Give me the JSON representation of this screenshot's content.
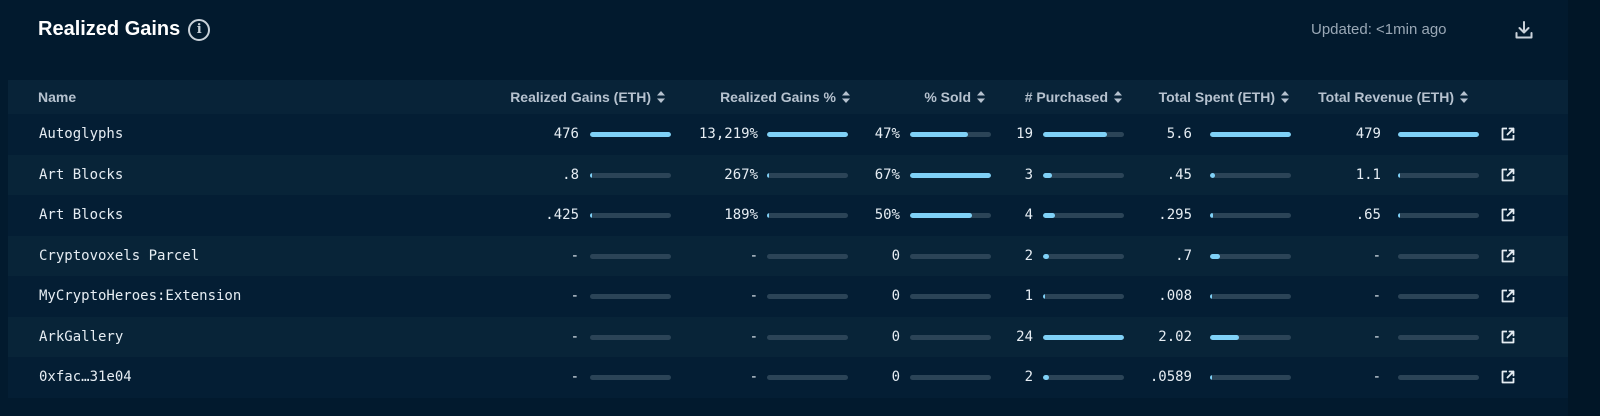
{
  "header": {
    "title": "Realized Gains",
    "updated": "Updated: <1min ago"
  },
  "columns": [
    {
      "label": "Name",
      "sortable": false
    },
    {
      "label": "Realized Gains (ETH)",
      "sortable": true
    },
    {
      "label": "Realized Gains %",
      "sortable": true
    },
    {
      "label": "% Sold",
      "sortable": true
    },
    {
      "label": "# Purchased",
      "sortable": true
    },
    {
      "label": "Total Spent (ETH)",
      "sortable": true
    },
    {
      "label": "Total Revenue (ETH)",
      "sortable": true
    }
  ],
  "rows": [
    {
      "name": "Autoglyphs",
      "gains": "476",
      "gains_bar": 1.0,
      "gains_pct": "13,219%",
      "gains_pct_bar": 1.0,
      "sold": "47%",
      "sold_bar": 0.72,
      "purchased": "19",
      "purchased_bar": 0.79,
      "spent": "5.6",
      "spent_bar": 1.0,
      "revenue": "479",
      "revenue_bar": 1.0
    },
    {
      "name": "Art Blocks",
      "gains": ".8",
      "gains_bar": 0.01,
      "gains_pct": "267%",
      "gains_pct_bar": 0.02,
      "sold": "67%",
      "sold_bar": 1.0,
      "purchased": "3",
      "purchased_bar": 0.11,
      "spent": ".45",
      "spent_bar": 0.06,
      "revenue": "1.1",
      "revenue_bar": 0.01
    },
    {
      "name": "Art Blocks",
      "gains": ".425",
      "gains_bar": 0.01,
      "gains_pct": "189%",
      "gains_pct_bar": 0.01,
      "sold": "50%",
      "sold_bar": 0.76,
      "purchased": "4",
      "purchased_bar": 0.15,
      "spent": ".295",
      "spent_bar": 0.04,
      "revenue": ".65",
      "revenue_bar": 0.01
    },
    {
      "name": "Cryptovoxels Parcel",
      "gains": "-",
      "gains_bar": 0,
      "gains_pct": "-",
      "gains_pct_bar": 0,
      "sold": "0",
      "sold_bar": 0,
      "purchased": "2",
      "purchased_bar": 0.07,
      "spent": ".7",
      "spent_bar": 0.12,
      "revenue": "-",
      "revenue_bar": 0
    },
    {
      "name": "MyCryptoHeroes:Extension",
      "gains": "-",
      "gains_bar": 0,
      "gains_pct": "-",
      "gains_pct_bar": 0,
      "sold": "0",
      "sold_bar": 0,
      "purchased": "1",
      "purchased_bar": 0.03,
      "spent": ".008",
      "spent_bar": 0.01,
      "revenue": "-",
      "revenue_bar": 0
    },
    {
      "name": "ArkGallery",
      "gains": "-",
      "gains_bar": 0,
      "gains_pct": "-",
      "gains_pct_bar": 0,
      "sold": "0",
      "sold_bar": 0,
      "purchased": "24",
      "purchased_bar": 1.0,
      "spent": "2.02",
      "spent_bar": 0.36,
      "revenue": "-",
      "revenue_bar": 0
    },
    {
      "name": "0xfac…31e04",
      "gains": "-",
      "gains_bar": 0,
      "gains_pct": "-",
      "gains_pct_bar": 0,
      "sold": "0",
      "sold_bar": 0,
      "purchased": "2",
      "purchased_bar": 0.07,
      "spent": ".0589",
      "spent_bar": 0.02,
      "revenue": "-",
      "revenue_bar": 0
    }
  ],
  "colors": {
    "bar_fill": "#7fd1f7",
    "bar_track": "#2b4457"
  },
  "icons": {
    "info": "info-icon",
    "download": "download-icon",
    "sort": "sort-icon",
    "external": "external-link-icon"
  }
}
